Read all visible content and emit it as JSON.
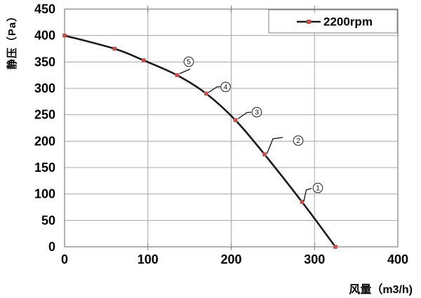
{
  "chart_data": {
    "type": "line",
    "title": "",
    "xlabel": "风量（m3/h)",
    "ylabel": "静压（Pa）",
    "xlim": [
      0,
      400
    ],
    "ylim": [
      0,
      450
    ],
    "xticks": [
      0,
      100,
      200,
      300,
      400
    ],
    "yticks": [
      0,
      50,
      100,
      150,
      200,
      250,
      300,
      350,
      400,
      450
    ],
    "grid": true,
    "legend_position": "top-right",
    "series": [
      {
        "name": "2200rpm",
        "x": [
          0,
          60,
          95,
          135,
          170,
          205,
          240,
          285,
          325
        ],
        "y": [
          400,
          375,
          353,
          325,
          290,
          240,
          175,
          85,
          0
        ]
      }
    ],
    "annotations": [
      {
        "label": "⑤",
        "digit": "5",
        "x": 135,
        "y": 325
      },
      {
        "label": "④",
        "digit": "4",
        "x": 170,
        "y": 290
      },
      {
        "label": "③",
        "digit": "3",
        "x": 205,
        "y": 240
      },
      {
        "label": "②",
        "digit": "2",
        "x": 240,
        "y": 175
      },
      {
        "label": "①",
        "digit": "1",
        "x": 285,
        "y": 85
      }
    ],
    "colors": {
      "line": "#1a1a1a",
      "marker": "#c0504d",
      "grid": "#a8a8a8",
      "border": "#808080",
      "text": "#000000"
    }
  }
}
